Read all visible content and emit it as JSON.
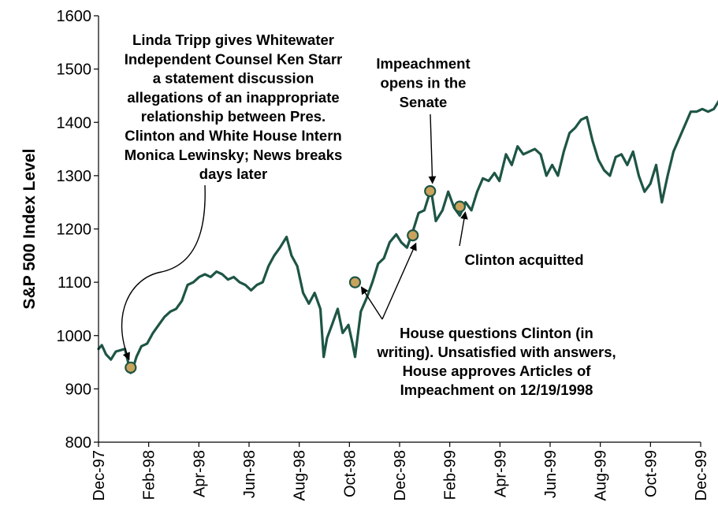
{
  "chart_data": {
    "type": "line",
    "ylabel": "S&P 500 Index Level",
    "xlabel": "",
    "ylim": [
      800,
      1600
    ],
    "yticks": [
      800,
      900,
      1000,
      1100,
      1200,
      1300,
      1400,
      1500,
      1600
    ],
    "xticks": [
      "Dec-97",
      "Feb-98",
      "Apr-98",
      "Jun-98",
      "Aug-98",
      "Oct-98",
      "Dec-98",
      "Feb-99",
      "Apr-99",
      "Jun-99",
      "Aug-99",
      "Oct-99",
      "Dec-99"
    ],
    "grid": false,
    "line_color": "#1e5545",
    "marker_color": "#c9a35c",
    "series": [
      {
        "x": [
          "1997-12-01",
          "1997-12-05",
          "1997-12-10",
          "1997-12-16",
          "1997-12-22",
          "1998-01-02",
          "1998-01-09",
          "1998-01-12",
          "1998-01-16",
          "1998-01-22",
          "1998-01-29",
          "1998-02-05",
          "1998-02-12",
          "1998-02-19",
          "1998-02-26",
          "1998-03-05",
          "1998-03-12",
          "1998-03-19",
          "1998-03-26",
          "1998-04-02",
          "1998-04-09",
          "1998-04-16",
          "1998-04-23",
          "1998-04-30",
          "1998-05-07",
          "1998-05-14",
          "1998-05-21",
          "1998-05-28",
          "1998-06-04",
          "1998-06-11",
          "1998-06-18",
          "1998-06-25",
          "1998-07-02",
          "1998-07-09",
          "1998-07-17",
          "1998-07-23",
          "1998-07-30",
          "1998-08-06",
          "1998-08-13",
          "1998-08-20",
          "1998-08-27",
          "1998-08-31",
          "1998-09-04",
          "1998-09-10",
          "1998-09-17",
          "1998-09-23",
          "1998-09-30",
          "1998-10-05",
          "1998-10-08",
          "1998-10-15",
          "1998-10-22",
          "1998-10-29",
          "1998-11-05",
          "1998-11-12",
          "1998-11-19",
          "1998-11-27",
          "1998-12-03",
          "1998-12-10",
          "1998-12-17",
          "1998-12-24",
          "1998-12-31",
          "1999-01-08",
          "1999-01-14",
          "1999-01-22",
          "1999-01-29",
          "1999-02-05",
          "1999-02-12",
          "1999-02-19",
          "1999-02-26",
          "1999-03-05",
          "1999-03-12",
          "1999-03-19",
          "1999-03-26",
          "1999-04-01",
          "1999-04-09",
          "1999-04-16",
          "1999-04-23",
          "1999-04-30",
          "1999-05-07",
          "1999-05-14",
          "1999-05-21",
          "1999-05-28",
          "1999-06-04",
          "1999-06-11",
          "1999-06-18",
          "1999-06-25",
          "1999-07-02",
          "1999-07-09",
          "1999-07-16",
          "1999-07-23",
          "1999-07-30",
          "1999-08-06",
          "1999-08-13",
          "1999-08-20",
          "1999-08-27",
          "1999-09-03",
          "1999-09-10",
          "1999-09-17",
          "1999-09-24",
          "1999-10-01",
          "1999-10-08",
          "1999-10-15",
          "1999-10-22",
          "1999-10-29",
          "1999-11-05",
          "1999-11-12",
          "1999-11-19",
          "1999-11-26",
          "1999-12-03",
          "1999-12-10",
          "1999-12-17",
          "1999-12-23",
          "1999-12-31"
        ],
        "y": [
          975,
          982,
          965,
          955,
          970,
          975,
          930,
          940,
          960,
          980,
          985,
          1005,
          1020,
          1035,
          1045,
          1050,
          1065,
          1095,
          1100,
          1110,
          1115,
          1110,
          1120,
          1115,
          1105,
          1110,
          1100,
          1095,
          1085,
          1095,
          1100,
          1130,
          1150,
          1165,
          1185,
          1150,
          1130,
          1080,
          1060,
          1080,
          1050,
          960,
          995,
          1020,
          1050,
          1005,
          1020,
          985,
          960,
          1045,
          1070,
          1100,
          1135,
          1145,
          1175,
          1190,
          1175,
          1165,
          1195,
          1230,
          1235,
          1275,
          1215,
          1235,
          1270,
          1240,
          1225,
          1250,
          1235,
          1270,
          1295,
          1290,
          1305,
          1290,
          1340,
          1320,
          1355,
          1340,
          1345,
          1350,
          1340,
          1300,
          1320,
          1300,
          1345,
          1380,
          1390,
          1405,
          1410,
          1365,
          1330,
          1310,
          1300,
          1335,
          1340,
          1320,
          1345,
          1300,
          1270,
          1285,
          1320,
          1250,
          1300,
          1345,
          1370,
          1395,
          1420,
          1420,
          1425,
          1420,
          1425,
          1440,
          1465
        ]
      }
    ],
    "markers": [
      {
        "x": "1998-01-09",
        "y": 940
      },
      {
        "x": "1998-10-08",
        "y": 1100
      },
      {
        "x": "1998-12-17",
        "y": 1188
      },
      {
        "x": "1999-01-07",
        "y": 1271
      },
      {
        "x": "1999-02-12",
        "y": 1242
      }
    ],
    "annotations": [
      {
        "lines": [
          "Linda Tripp gives Whitewater",
          "Independent Counsel Ken Starr",
          "a statement discussion",
          "allegations of an inappropriate",
          "relationship between Pres.",
          "Clinton and White House Intern",
          "Monica Lewinsky; News breaks",
          "days later"
        ]
      },
      {
        "lines": [
          "Impeachment",
          "opens in the",
          "Senate"
        ]
      },
      {
        "lines": [
          "Clinton acquitted"
        ]
      },
      {
        "lines": [
          "House questions Clinton (in",
          "writing). Unsatisfied with answers,",
          "House approves Articles of",
          "Impeachment on 12/19/1998"
        ]
      }
    ]
  }
}
